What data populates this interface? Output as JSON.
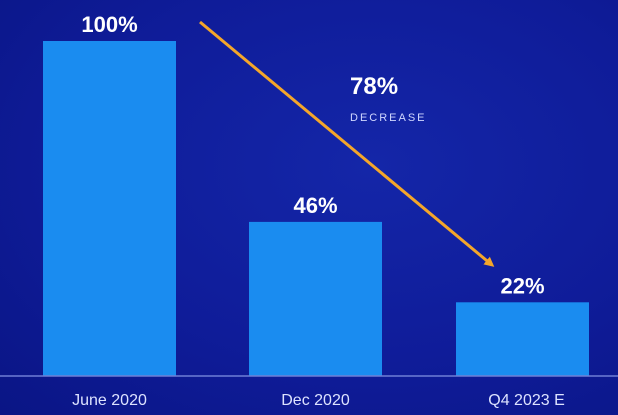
{
  "chart_data": {
    "type": "bar",
    "categories": [
      "June 2020",
      "Dec 2020",
      "Q4 2023 E"
    ],
    "values": [
      100,
      46,
      22
    ],
    "value_labels": [
      "100%",
      "46%",
      "22%"
    ],
    "ylim": [
      0,
      100
    ],
    "grid": false,
    "annotation": {
      "value": "78%",
      "caption": "DECREASE"
    },
    "colors": {
      "background": "#0f1c99",
      "bar": "#1a8cf0",
      "arrow": "#f4a62a",
      "axis": "#6f7fd6"
    }
  }
}
